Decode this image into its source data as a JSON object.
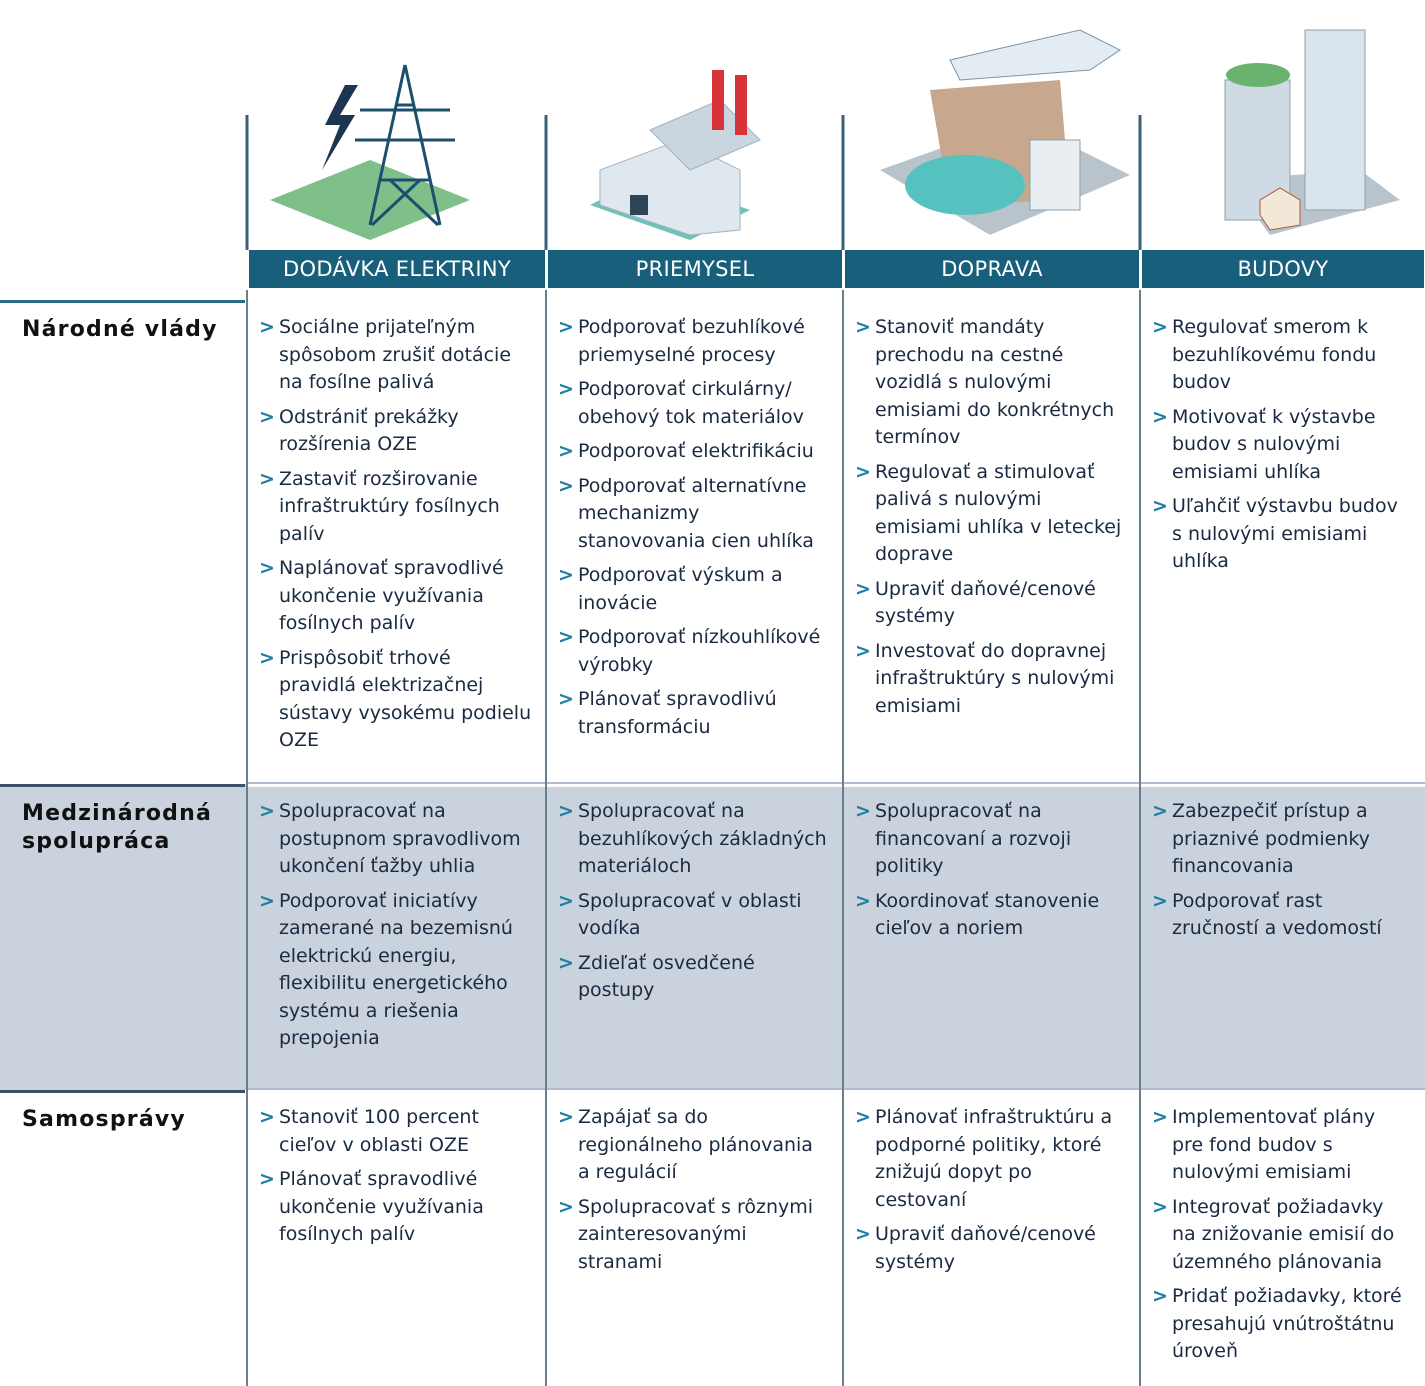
{
  "columns": [
    {
      "label": "DODÁVKA ELEKTRINY"
    },
    {
      "label": "PRIEMYSEL"
    },
    {
      "label": "DOPRAVA"
    },
    {
      "label": "BUDOVY"
    }
  ],
  "rows": [
    {
      "label": "Národné vlády",
      "cells": [
        [
          "Sociálne prijateľným spôsobom zrušiť dotácie na fosílne palivá",
          "Odstrániť prekážky rozšírenia OZE",
          "Zastaviť rozširovanie infraštruktúry fosílnych palív",
          "Naplánovať spravodlivé ukončenie využívania fosílnych palív",
          "Prispôsobiť trhové pravidlá elektrizačnej sústavy vysokému podielu OZE"
        ],
        [
          "Podporovať bezuhlíkové priemyselné procesy",
          "Podporovať cirkulárny/ obehový tok materiálov",
          "Podporovať elektrifikáciu",
          "Podporovať alternatívne mechanizmy stanovovania cien uhlíka",
          "Podporovať výskum a inovácie",
          "Podporovať nízkouhlíkové výrobky",
          "Plánovať spravodlivú transformáciu"
        ],
        [
          "Stanoviť mandáty prechodu na cestné vozidlá s nulovými emisiami do konkrétnych termínov",
          "Regulovať a stimulovať palivá s nulovými emisiami uhlíka v leteckej doprave",
          "Upraviť daňové/cenové systémy",
          "Investovať do dopravnej infraštruktúry s nulovými emisiami"
        ],
        [
          "Regulovať smerom k bezuhlíkovému fondu budov",
          "Motivovať k výstavbe budov s nulovými emisiami uhlíka",
          "Uľahčiť výstavbu budov s nulovými emisiami uhlíka"
        ]
      ]
    },
    {
      "label": "Medzinárodná spolupráca",
      "cells": [
        [
          "Spolupracovať na postupnom spravodlivom ukončení ťažby uhlia",
          "Podporovať iniciatívy zamerané na bezemisnú elektrickú energiu, flexibilitu energetického systému a riešenia prepojenia"
        ],
        [
          "Spolupracovať na bezuhlíkových základných materiáloch",
          "Spolupracovať v oblasti vodíka",
          "Zdieľať osvedčené postupy"
        ],
        [
          "Spolupracovať na financovaní a rozvoji politiky",
          "Koordinovať stanovenie cieľov a noriem"
        ],
        [
          "Zabezpečiť prístup a priaznivé podmienky financovania",
          "Podporovať rast zručností a vedomostí"
        ]
      ]
    },
    {
      "label": "Samosprávy",
      "cells": [
        [
          "Stanoviť 100 percent cieľov v oblasti OZE",
          "Plánovať spravodlivé ukončenie využívania fosílnych palív"
        ],
        [
          "Zapájať sa do regionálneho plánovania a regulácií",
          "Spolupracovať s rôznymi zainteresovanými stranami"
        ],
        [
          "Plánovať infraštruktúru a podporné politiky, ktoré znižujú dopyt po cestovaní",
          "Upraviť daňové/cenové systémy"
        ],
        [
          "Implementovať plány pre fond budov s nulovými emisiami",
          "Integrovať požiadavky na znižovanie emisií do územného plánovania",
          "Pridať požiadavky, ktoré presahujú vnútroštátnu úroveň"
        ]
      ]
    }
  ]
}
